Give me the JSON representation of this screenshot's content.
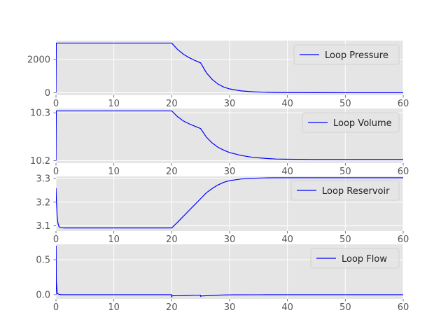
{
  "chart_data": [
    {
      "type": "line",
      "xlim": [
        0,
        60
      ],
      "ylim": [
        -150,
        3150
      ],
      "xticks": [
        0,
        10,
        20,
        30,
        40,
        50,
        60
      ],
      "yticks": [
        0,
        2000
      ],
      "ytick_labels": [
        "0",
        "2000"
      ],
      "grid": true,
      "legend_position": "top-right",
      "series": [
        {
          "name": "Loop Pressure",
          "color": "#0000ff",
          "x": [
            0,
            0.05,
            20,
            21,
            22,
            23,
            24,
            25,
            26,
            27,
            28,
            29,
            30,
            32,
            34,
            36,
            38,
            40,
            45,
            50,
            55,
            60
          ],
          "y": [
            0,
            3000,
            3000,
            2620,
            2330,
            2120,
            1950,
            1800,
            1200,
            800,
            520,
            340,
            230,
            110,
            55,
            28,
            14,
            8,
            3,
            1,
            0,
            0
          ]
        }
      ]
    },
    {
      "type": "line",
      "xlim": [
        0,
        60
      ],
      "ylim": [
        10.195,
        10.309
      ],
      "xticks": [
        0,
        10,
        20,
        30,
        40,
        50,
        60
      ],
      "yticks": [
        10.2,
        10.3
      ],
      "ytick_labels": [
        "10.2",
        "10.3"
      ],
      "grid": true,
      "legend_position": "top-right",
      "series": [
        {
          "name": "Loop Volume",
          "color": "#0000ff",
          "x": [
            0,
            0.05,
            20,
            21,
            22,
            23,
            24,
            25,
            26,
            27,
            28,
            29,
            30,
            32,
            34,
            36,
            38,
            40,
            45,
            50,
            55,
            60
          ],
          "y": [
            10.2,
            10.304,
            10.304,
            10.292,
            10.283,
            10.277,
            10.272,
            10.267,
            10.249,
            10.237,
            10.228,
            10.222,
            10.217,
            10.211,
            10.207,
            10.205,
            10.2035,
            10.203,
            10.2025,
            10.2025,
            10.2025,
            10.2025
          ]
        }
      ]
    },
    {
      "type": "line",
      "xlim": [
        0,
        60
      ],
      "ylim": [
        3.078,
        3.309
      ],
      "xticks": [
        0,
        10,
        20,
        30,
        40,
        50,
        60
      ],
      "yticks": [
        3.1,
        3.2,
        3.3
      ],
      "ytick_labels": [
        "3.1",
        "3.2",
        "3.3"
      ],
      "grid": true,
      "legend_position": "top-right",
      "series": [
        {
          "name": "Loop Reservoir",
          "color": "#0000ff",
          "x": [
            0,
            0.1,
            0.2,
            0.35,
            0.5,
            0.7,
            1,
            1.5,
            2,
            20,
            21,
            22,
            23,
            24,
            25,
            26,
            27,
            28,
            29,
            30,
            32,
            34,
            36,
            38,
            40,
            45,
            50,
            55,
            60
          ],
          "y": [
            3.26,
            3.19,
            3.14,
            3.11,
            3.098,
            3.093,
            3.0915,
            3.091,
            3.091,
            3.091,
            3.115,
            3.14,
            3.165,
            3.19,
            3.215,
            3.24,
            3.258,
            3.273,
            3.284,
            3.291,
            3.298,
            3.301,
            3.3025,
            3.303,
            3.303,
            3.303,
            3.303,
            3.303,
            3.303
          ]
        }
      ]
    },
    {
      "type": "line",
      "xlim": [
        0,
        60
      ],
      "ylim": [
        -0.06,
        0.72
      ],
      "xticks": [
        0,
        10,
        20,
        30,
        40,
        50,
        60
      ],
      "yticks": [
        0.0,
        0.5
      ],
      "ytick_labels": [
        "0.0",
        "0.5"
      ],
      "grid": true,
      "legend_position": "top-right",
      "series": [
        {
          "name": "Loop Flow",
          "color": "#0000ff",
          "x": [
            0,
            0.02,
            0.05,
            0.2,
            0.5,
            1,
            19.99,
            20,
            20.05,
            21,
            22,
            23,
            24,
            24.99,
            25,
            25.05,
            27,
            29,
            31,
            35,
            40,
            50,
            60
          ],
          "y": [
            0,
            0.7,
            0.2,
            0.02,
            0.005,
            0.0,
            0.0,
            -0.04,
            -0.015,
            -0.013,
            -0.011,
            -0.01,
            -0.008,
            -0.007,
            -0.022,
            -0.018,
            -0.01,
            -0.004,
            -0.0015,
            -0.0004,
            0.0,
            0.0,
            0.0
          ]
        }
      ]
    }
  ]
}
